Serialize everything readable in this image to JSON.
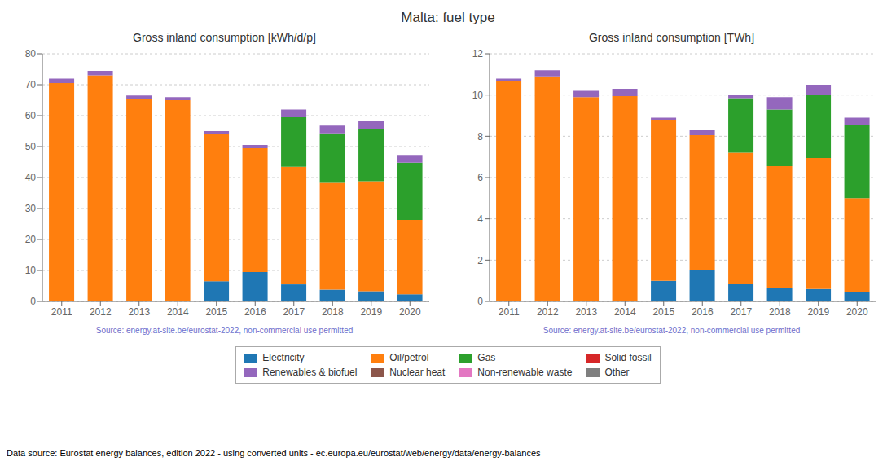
{
  "title": "Malta: fuel type",
  "annotations": [
    "Data source: Eurostat energy balances, edition 2022 - using converted units - ec.europa.eu/eurostat/web/energy/data/energy-balances"
  ],
  "legend": "bottom",
  "chart_data": [
    {
      "type": "bar",
      "stacked": true,
      "title": "Gross inland consumption [kWh/d/p]",
      "annotations": [
        "Source: energy.at-site.be/eurostat-2022, non-commercial use permitted"
      ],
      "categories": [
        "2011",
        "2012",
        "2013",
        "2014",
        "2015",
        "2016",
        "2017",
        "2018",
        "2019",
        "2020"
      ],
      "ylim": [
        0,
        80
      ],
      "yticks": [
        0,
        10,
        20,
        30,
        40,
        50,
        60,
        70,
        80
      ],
      "grid": true,
      "series": [
        {
          "name": "Electricity",
          "color": "#1f77b4",
          "values": [
            0,
            0,
            0,
            0,
            6.5,
            9.5,
            5.5,
            3.8,
            3.3,
            2.3
          ]
        },
        {
          "name": "Oil/petrol",
          "color": "#ff7f0e",
          "values": [
            70.5,
            73.0,
            65.5,
            65.0,
            47.5,
            40.0,
            38.0,
            34.5,
            35.5,
            24.0
          ]
        },
        {
          "name": "Gas",
          "color": "#2ca02c",
          "values": [
            0,
            0,
            0,
            0,
            0,
            0,
            16.0,
            16.0,
            17.0,
            18.5
          ]
        },
        {
          "name": "Solid fossil",
          "color": "#d62728",
          "values": [
            0,
            0,
            0,
            0,
            0,
            0,
            0,
            0,
            0,
            0
          ]
        },
        {
          "name": "Renewables & biofuel",
          "color": "#9467bd",
          "values": [
            1.5,
            1.5,
            1.0,
            1.0,
            1.0,
            1.0,
            2.5,
            2.5,
            2.5,
            2.5
          ]
        },
        {
          "name": "Nuclear heat",
          "color": "#8c564b",
          "values": [
            0,
            0,
            0,
            0,
            0,
            0,
            0,
            0,
            0,
            0
          ]
        },
        {
          "name": "Non-renewable waste",
          "color": "#e377c2",
          "values": [
            0,
            0,
            0,
            0,
            0,
            0,
            0,
            0,
            0,
            0
          ]
        },
        {
          "name": "Other",
          "color": "#7f7f7f",
          "values": [
            0,
            0,
            0,
            0,
            0,
            0,
            0,
            0,
            0,
            0
          ]
        }
      ]
    },
    {
      "type": "bar",
      "stacked": true,
      "title": "Gross inland consumption [TWh]",
      "annotations": [
        "Source: energy.at-site.be/eurostat-2022, non-commercial use permitted"
      ],
      "categories": [
        "2011",
        "2012",
        "2013",
        "2014",
        "2015",
        "2016",
        "2017",
        "2018",
        "2019",
        "2020"
      ],
      "ylim": [
        0,
        12
      ],
      "yticks": [
        0,
        2,
        4,
        6,
        8,
        10,
        12
      ],
      "grid": true,
      "series": [
        {
          "name": "Electricity",
          "color": "#1f77b4",
          "values": [
            0,
            0,
            0,
            0,
            1.0,
            1.5,
            0.85,
            0.65,
            0.6,
            0.45
          ]
        },
        {
          "name": "Oil/petrol",
          "color": "#ff7f0e",
          "values": [
            10.7,
            10.9,
            9.9,
            9.95,
            7.8,
            6.55,
            6.35,
            5.9,
            6.35,
            4.55
          ]
        },
        {
          "name": "Gas",
          "color": "#2ca02c",
          "values": [
            0,
            0,
            0,
            0,
            0,
            0,
            2.65,
            2.75,
            3.05,
            3.55
          ]
        },
        {
          "name": "Solid fossil",
          "color": "#d62728",
          "values": [
            0,
            0,
            0,
            0,
            0,
            0,
            0,
            0,
            0,
            0
          ]
        },
        {
          "name": "Renewables & biofuel",
          "color": "#9467bd",
          "values": [
            0.1,
            0.3,
            0.3,
            0.35,
            0.1,
            0.25,
            0.15,
            0.6,
            0.5,
            0.35
          ]
        },
        {
          "name": "Nuclear heat",
          "color": "#8c564b",
          "values": [
            0,
            0,
            0,
            0,
            0,
            0,
            0,
            0,
            0,
            0
          ]
        },
        {
          "name": "Non-renewable waste",
          "color": "#e377c2",
          "values": [
            0,
            0,
            0,
            0,
            0,
            0,
            0,
            0,
            0,
            0
          ]
        },
        {
          "name": "Other",
          "color": "#7f7f7f",
          "values": [
            0,
            0,
            0,
            0,
            0,
            0,
            0,
            0,
            0,
            0
          ]
        }
      ]
    }
  ]
}
